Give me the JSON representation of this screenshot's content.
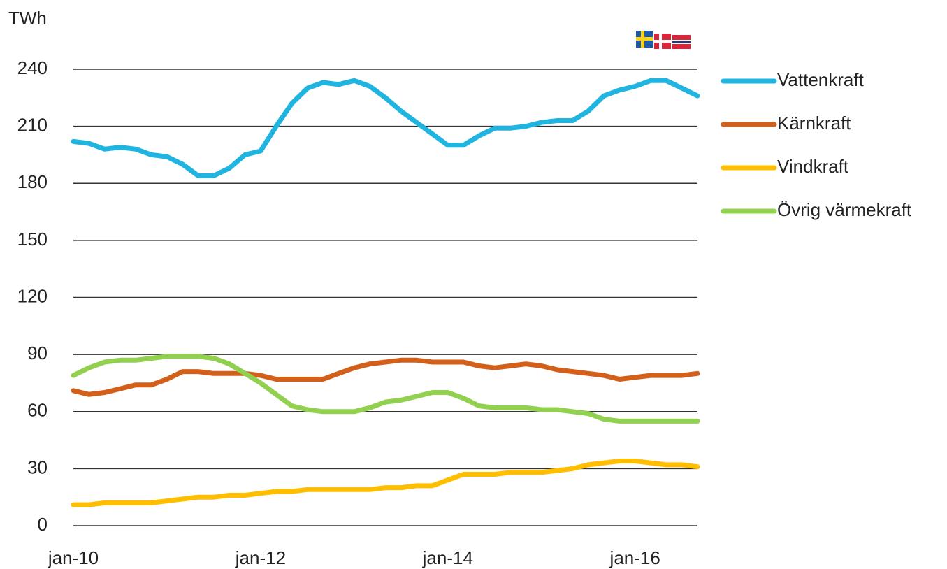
{
  "chart_data": {
    "type": "line",
    "y_axis_label": "TWh",
    "categories": [
      "jan-10",
      null,
      null,
      null,
      null,
      null,
      null,
      null,
      null,
      null,
      null,
      null,
      "jan-12",
      null,
      null,
      null,
      null,
      null,
      null,
      null,
      null,
      null,
      null,
      null,
      "jan-14",
      null,
      null,
      null,
      null,
      null,
      null,
      null,
      null,
      null,
      null,
      null,
      "jan-16",
      null,
      null,
      null,
      null
    ],
    "series": [
      {
        "name": "Vattenkraft",
        "color": "#1fb5e0",
        "values": [
          202,
          201,
          198,
          199,
          198,
          195,
          194,
          190,
          184,
          184,
          188,
          195,
          197,
          210,
          222,
          230,
          233,
          232,
          234,
          231,
          225,
          218,
          212,
          206,
          200,
          200,
          205,
          209,
          209,
          210,
          212,
          213,
          213,
          218,
          226,
          229,
          231,
          234,
          234,
          230,
          226
        ]
      },
      {
        "name": "Kärnkraft",
        "color": "#d2601a",
        "values": [
          71,
          69,
          70,
          72,
          74,
          74,
          77,
          81,
          81,
          80,
          80,
          80,
          79,
          77,
          77,
          77,
          77,
          80,
          83,
          85,
          86,
          87,
          87,
          86,
          86,
          86,
          84,
          83,
          84,
          85,
          84,
          82,
          81,
          80,
          79,
          77,
          78,
          79,
          79,
          79,
          80
        ]
      },
      {
        "name": "Vindkraft",
        "color": "#ffbf00",
        "values": [
          11,
          11,
          12,
          12,
          12,
          12,
          13,
          14,
          15,
          15,
          16,
          16,
          17,
          18,
          18,
          19,
          19,
          19,
          19,
          19,
          20,
          20,
          21,
          21,
          24,
          27,
          27,
          27,
          28,
          28,
          28,
          29,
          30,
          32,
          33,
          34,
          34,
          33,
          32,
          32,
          31
        ]
      },
      {
        "name": "Övrig värmekraft",
        "color": "#92d050",
        "values": [
          79,
          83,
          86,
          87,
          87,
          88,
          89,
          89,
          89,
          88,
          85,
          80,
          75,
          69,
          63,
          61,
          60,
          60,
          60,
          62,
          65,
          66,
          68,
          70,
          70,
          67,
          63,
          62,
          62,
          62,
          61,
          61,
          60,
          59,
          56,
          55,
          55,
          55,
          55,
          55,
          55
        ]
      }
    ],
    "ylim": [
      0,
      240
    ],
    "yticks": [
      0,
      30,
      60,
      90,
      120,
      150,
      180,
      210,
      240
    ],
    "grid": true,
    "legend": "right"
  }
}
